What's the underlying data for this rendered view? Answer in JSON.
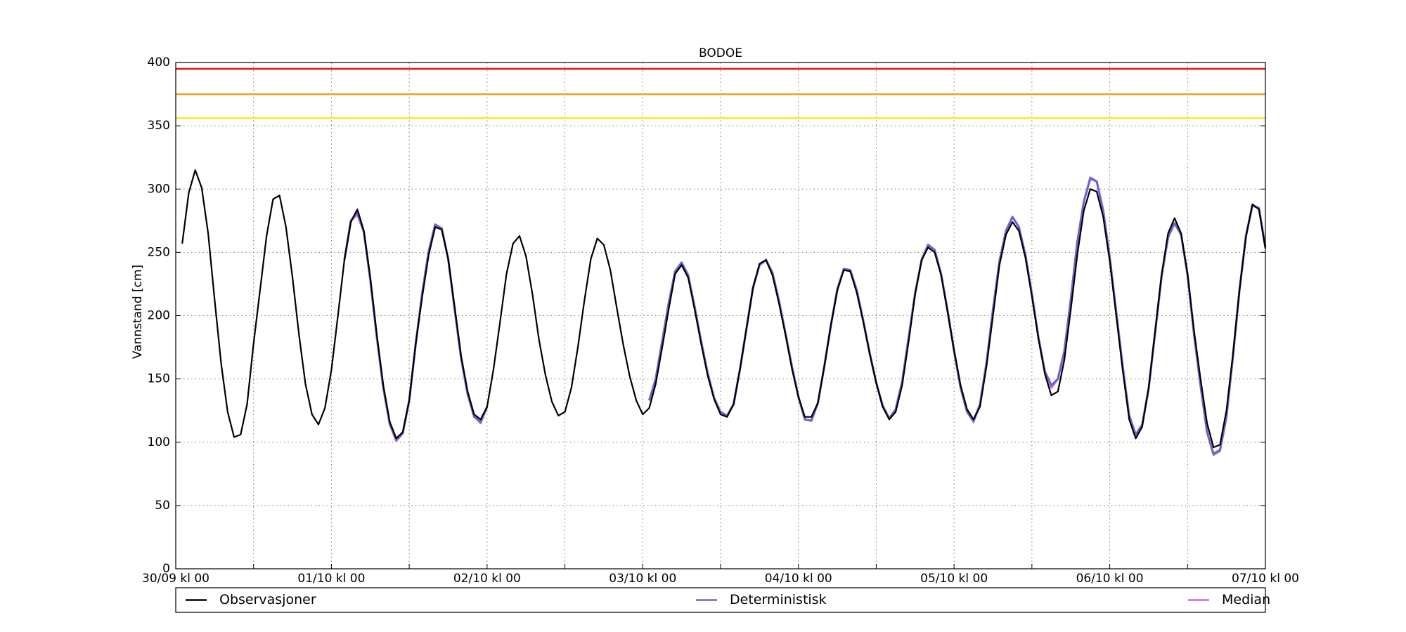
{
  "chart_data": {
    "type": "line",
    "title": "BODOE",
    "ylabel": "Vannstand [cm]",
    "x": [
      0,
      1,
      2,
      3,
      4,
      5,
      6,
      7,
      8,
      9,
      10,
      11,
      12,
      13,
      14,
      15,
      16,
      17,
      18,
      19,
      20,
      21,
      22,
      23,
      24,
      25,
      26,
      27,
      28,
      29,
      30,
      31,
      32,
      33,
      34,
      35,
      36,
      37,
      38,
      39,
      40,
      41,
      42,
      43,
      44,
      45,
      46,
      47,
      48,
      49,
      50,
      51,
      52,
      53,
      54,
      55,
      56,
      57,
      58,
      59,
      60,
      61,
      62,
      63,
      64,
      65,
      66,
      67,
      68,
      69,
      70,
      71,
      72,
      73,
      74,
      75,
      76,
      77,
      78,
      79,
      80,
      81,
      82,
      83,
      84,
      85,
      86,
      87,
      88,
      89,
      90,
      91,
      92,
      93,
      94,
      95,
      96,
      97,
      98,
      99,
      100,
      101,
      102,
      103,
      104,
      105,
      106,
      107,
      108,
      109,
      110,
      111,
      112,
      113,
      114,
      115,
      116,
      117,
      118,
      119,
      120,
      121,
      122,
      123,
      124,
      125,
      126,
      127,
      128,
      129,
      130,
      131,
      132,
      133,
      134,
      135,
      136,
      137,
      138,
      139,
      140,
      141,
      142,
      143,
      144,
      145,
      146,
      147,
      148,
      149,
      150,
      151,
      152,
      153,
      154,
      155,
      156,
      157,
      158,
      159,
      160,
      161,
      162,
      163,
      164,
      165,
      166,
      167,
      168
    ],
    "series": [
      {
        "name": "Median",
        "color": "#cc66dd",
        "values": [
          null,
          null,
          null,
          null,
          null,
          null,
          null,
          null,
          null,
          null,
          null,
          null,
          null,
          null,
          null,
          null,
          null,
          null,
          null,
          null,
          null,
          null,
          null,
          null,
          null,
          null,
          244,
          275,
          280,
          266,
          228,
          183,
          143,
          114,
          101,
          107,
          133,
          178,
          218,
          251,
          270,
          269,
          245,
          205,
          166,
          138,
          121,
          115,
          128,
          null,
          null,
          null,
          null,
          null,
          null,
          null,
          null,
          null,
          null,
          null,
          null,
          null,
          null,
          null,
          null,
          null,
          null,
          null,
          null,
          null,
          null,
          null,
          null,
          133,
          150,
          180,
          210,
          235,
          242,
          232,
          207,
          180,
          155,
          135,
          124,
          121,
          130,
          158,
          190,
          222,
          240,
          244,
          234,
          212,
          186,
          160,
          136,
          118,
          117,
          131,
          160,
          192,
          221,
          237,
          236,
          220,
          196,
          170,
          147,
          129,
          119,
          126,
          148,
          183,
          218,
          244,
          256,
          252,
          233,
          204,
          172,
          143,
          124,
          116,
          130,
          163,
          205,
          243,
          267,
          278,
          270,
          248,
          217,
          183,
          156,
          143,
          150,
          172,
          213,
          258,
          290,
          308,
          306,
          283,
          246,
          203,
          160,
          121,
          106,
          114,
          142,
          187,
          231,
          262,
          273,
          264,
          232,
          185,
          145,
          108,
          90,
          93,
          120,
          168,
          220,
          263,
          287,
          285,
          254
        ]
      },
      {
        "name": "Deterministisk",
        "color": "#6666cc",
        "values": [
          null,
          null,
          null,
          null,
          null,
          null,
          null,
          null,
          null,
          null,
          null,
          null,
          null,
          null,
          null,
          null,
          null,
          null,
          null,
          null,
          null,
          null,
          null,
          null,
          null,
          null,
          244,
          275,
          282,
          266,
          228,
          183,
          143,
          114,
          102,
          107,
          133,
          178,
          218,
          251,
          272,
          269,
          245,
          205,
          166,
          138,
          120,
          116,
          128,
          null,
          null,
          null,
          null,
          null,
          null,
          null,
          null,
          null,
          null,
          null,
          null,
          null,
          null,
          null,
          null,
          null,
          null,
          null,
          null,
          null,
          null,
          null,
          null,
          133,
          150,
          180,
          210,
          235,
          242,
          232,
          207,
          180,
          155,
          135,
          124,
          121,
          130,
          158,
          190,
          222,
          240,
          244,
          234,
          212,
          186,
          160,
          136,
          118,
          117,
          131,
          160,
          192,
          221,
          237,
          236,
          220,
          196,
          170,
          147,
          128,
          119,
          126,
          148,
          183,
          218,
          244,
          256,
          252,
          233,
          204,
          172,
          143,
          124,
          117,
          130,
          163,
          205,
          243,
          267,
          278,
          270,
          248,
          217,
          183,
          156,
          145,
          150,
          172,
          213,
          258,
          290,
          309,
          306,
          283,
          246,
          203,
          160,
          121,
          106,
          114,
          142,
          187,
          231,
          262,
          273,
          264,
          232,
          185,
          145,
          108,
          91,
          94,
          120,
          168,
          220,
          263,
          287,
          285,
          254
        ]
      },
      {
        "name": "Observasjoner",
        "color": "#000000",
        "values": [
          null,
          257,
          297,
          315,
          301,
          265,
          212,
          162,
          124,
          104,
          106,
          130,
          178,
          220,
          263,
          292,
          295,
          270,
          230,
          185,
          146,
          122,
          114,
          127,
          157,
          200,
          244,
          274,
          284,
          267,
          230,
          185,
          145,
          116,
          103,
          108,
          133,
          178,
          215,
          248,
          270,
          268,
          245,
          207,
          168,
          140,
          122,
          118,
          128,
          158,
          195,
          233,
          257,
          263,
          247,
          217,
          181,
          153,
          132,
          121,
          124,
          143,
          175,
          212,
          245,
          261,
          256,
          236,
          206,
          177,
          152,
          133,
          122,
          127,
          146,
          175,
          205,
          233,
          240,
          230,
          205,
          178,
          153,
          134,
          122,
          120,
          130,
          158,
          190,
          222,
          241,
          244,
          232,
          210,
          185,
          158,
          136,
          120,
          120,
          131,
          160,
          192,
          220,
          236,
          235,
          218,
          195,
          170,
          147,
          128,
          118,
          124,
          145,
          180,
          217,
          244,
          254,
          250,
          232,
          203,
          173,
          145,
          126,
          118,
          128,
          160,
          200,
          240,
          264,
          274,
          267,
          246,
          215,
          182,
          154,
          137,
          140,
          165,
          205,
          248,
          283,
          300,
          298,
          278,
          243,
          200,
          157,
          118,
          103,
          112,
          143,
          188,
          233,
          265,
          277,
          265,
          233,
          188,
          150,
          115,
          96,
          98,
          125,
          170,
          220,
          262,
          288,
          284,
          253
        ]
      }
    ],
    "reference_lines": [
      {
        "value": 395,
        "color": "#ee1111"
      },
      {
        "value": 375,
        "color": "#f0a020"
      },
      {
        "value": 356,
        "color": "#f0f020"
      }
    ],
    "legend_order": [
      2,
      1,
      0
    ],
    "xlim": [
      0,
      168
    ],
    "xticks": [
      {
        "value": 0,
        "label": "30/09 kl 00"
      },
      {
        "value": 24,
        "label": "01/10 kl 00"
      },
      {
        "value": 48,
        "label": "02/10 kl 00"
      },
      {
        "value": 72,
        "label": "03/10 kl 00"
      },
      {
        "value": 96,
        "label": "04/10 kl 00"
      },
      {
        "value": 120,
        "label": "05/10 kl 00"
      },
      {
        "value": 144,
        "label": "06/10 kl 00"
      },
      {
        "value": 168,
        "label": "07/10 kl 00"
      }
    ],
    "xticks_minor": [
      12,
      36,
      60,
      84,
      108,
      132,
      156
    ],
    "ylim": [
      0,
      400
    ],
    "yticks": [
      0,
      50,
      100,
      150,
      200,
      250,
      300,
      350,
      400
    ],
    "grid": true,
    "legend": "below"
  }
}
